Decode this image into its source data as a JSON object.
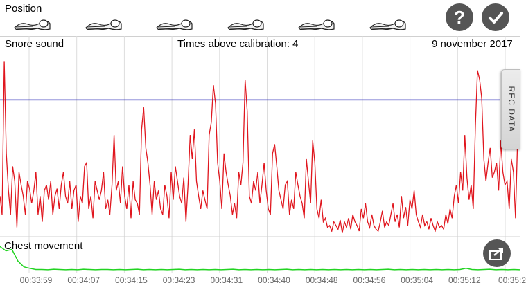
{
  "position": {
    "title": "Position",
    "sleepers": [
      "sleeper-icon",
      "sleeper-icon",
      "sleeper-icon",
      "sleeper-icon",
      "sleeper-icon",
      "sleeper-icon"
    ]
  },
  "buttons": {
    "help_label": "?",
    "confirm_icon": "checkmark-icon",
    "share_icon": "share-icon"
  },
  "snore": {
    "title": "Snore sound",
    "times_above": "Times above calibration: 4",
    "date": "9 november 2017"
  },
  "tab": {
    "label": "REC DATA"
  },
  "chest": {
    "title": "Chest movement"
  },
  "colors": {
    "snore_line": "#e0161e",
    "calibration": "#2b2bb8",
    "chest_line": "#22d322",
    "grid": "#dcdcdc",
    "button": "#555555"
  },
  "chart_data": [
    {
      "type": "line",
      "name": "snore-sound",
      "calibration_level": 0.74,
      "ylim": [
        0,
        1
      ],
      "values": [
        0.22,
        0.12,
        0.95,
        0.45,
        0.25,
        0.12,
        0.38,
        0.3,
        0.05,
        0.35,
        0.28,
        0.22,
        0.12,
        0.3,
        0.26,
        0.18,
        0.25,
        0.35,
        0.12,
        0.22,
        0.08,
        0.25,
        0.28,
        0.2,
        0.3,
        0.12,
        0.22,
        0.26,
        0.15,
        0.28,
        0.35,
        0.22,
        0.18,
        0.3,
        0.15,
        0.25,
        0.28,
        0.08,
        0.22,
        0.18,
        0.38,
        0.4,
        0.15,
        0.22,
        0.1,
        0.3,
        0.25,
        0.2,
        0.25,
        0.35,
        0.15,
        0.2,
        0.12,
        0.28,
        0.55,
        0.25,
        0.3,
        0.18,
        0.38,
        0.22,
        0.15,
        0.28,
        0.1,
        0.3,
        0.2,
        0.18,
        0.12,
        0.58,
        0.7,
        0.48,
        0.4,
        0.28,
        0.12,
        0.3,
        0.2,
        0.25,
        0.15,
        0.12,
        0.28,
        0.22,
        0.1,
        0.35,
        0.2,
        0.38,
        0.3,
        0.22,
        0.18,
        0.32,
        0.08,
        0.28,
        0.55,
        0.42,
        0.58,
        0.3,
        0.22,
        0.15,
        0.25,
        0.2,
        0.15,
        0.55,
        0.62,
        0.82,
        0.72,
        0.4,
        0.3,
        0.15,
        0.45,
        0.35,
        0.28,
        0.22,
        0.12,
        0.18,
        0.1,
        0.35,
        0.28,
        0.4,
        0.85,
        0.68,
        0.22,
        0.18,
        0.3,
        0.25,
        0.35,
        0.18,
        0.28,
        0.4,
        0.25,
        0.15,
        0.12,
        0.45,
        0.5,
        0.38,
        0.25,
        0.2,
        0.15,
        0.28,
        0.3,
        0.12,
        0.2,
        0.15,
        0.35,
        0.28,
        0.22,
        0.18,
        0.1,
        0.42,
        0.3,
        0.18,
        0.52,
        0.4,
        0.15,
        0.1,
        0.2,
        0.08,
        0.1,
        0.05,
        0.06,
        0.03,
        0.08,
        0.06,
        0.04,
        0.09,
        0.02,
        0.08,
        0.05,
        0.1,
        0.04,
        0.12,
        0.08,
        0.06,
        0.03,
        0.15,
        0.1,
        0.18,
        0.08,
        0.05,
        0.12,
        0.06,
        0.04,
        0.03,
        0.08,
        0.14,
        0.05,
        0.08,
        0.06,
        0.12,
        0.18,
        0.08,
        0.12,
        0.05,
        0.22,
        0.1,
        0.16,
        0.06,
        0.2,
        0.15,
        0.25,
        0.12,
        0.08,
        0.05,
        0.12,
        0.06,
        0.08,
        0.04,
        0.1,
        0.06,
        0.03,
        0.08,
        0.05,
        0.06,
        0.04,
        0.12,
        0.07,
        0.15,
        0.1,
        0.22,
        0.28,
        0.18,
        0.35,
        0.25,
        0.55,
        0.32,
        0.2,
        0.28,
        0.15,
        0.6,
        0.9,
        0.85,
        0.75,
        0.42,
        0.3,
        0.4,
        0.48,
        0.32,
        0.35,
        0.4,
        0.25,
        0.52,
        0.35,
        0.28,
        0.3,
        0.15,
        0.42,
        0.35,
        0.1,
        0.55,
        0.62
      ]
    },
    {
      "type": "line",
      "name": "chest-movement",
      "ylim": [
        0,
        1
      ],
      "x_ticks": [
        "00:33:59",
        "00:34:07",
        "00:34:15",
        "00:34:23",
        "00:34:31",
        "00:34:40",
        "00:34:48",
        "00:34:56",
        "00:35:04",
        "00:35:12",
        "00:35:2"
      ],
      "values": [
        0.85,
        0.7,
        0.75,
        0.35,
        0.15,
        0.1,
        0.06,
        0.06,
        0.05,
        0.07,
        0.06,
        0.05,
        0.06,
        0.05,
        0.07,
        0.06,
        0.05,
        0.06,
        0.06,
        0.05,
        0.06,
        0.05,
        0.06,
        0.07,
        0.05,
        0.06,
        0.05,
        0.06,
        0.05,
        0.06,
        0.07,
        0.05,
        0.06,
        0.05,
        0.06,
        0.05,
        0.06,
        0.05,
        0.06,
        0.07,
        0.05,
        0.06,
        0.05,
        0.06,
        0.05,
        0.06,
        0.05,
        0.06,
        0.07,
        0.05,
        0.06,
        0.05,
        0.06,
        0.05,
        0.06,
        0.05,
        0.06,
        0.05,
        0.06,
        0.05,
        0.06,
        0.05,
        0.06,
        0.05,
        0.06,
        0.07,
        0.05,
        0.06,
        0.05,
        0.06,
        0.05,
        0.06,
        0.05,
        0.06,
        0.05,
        0.06,
        0.05,
        0.06,
        0.1,
        0.06,
        0.05,
        0.06,
        0.07,
        0.05,
        0.06,
        0.05,
        0.06,
        0.05
      ]
    }
  ]
}
